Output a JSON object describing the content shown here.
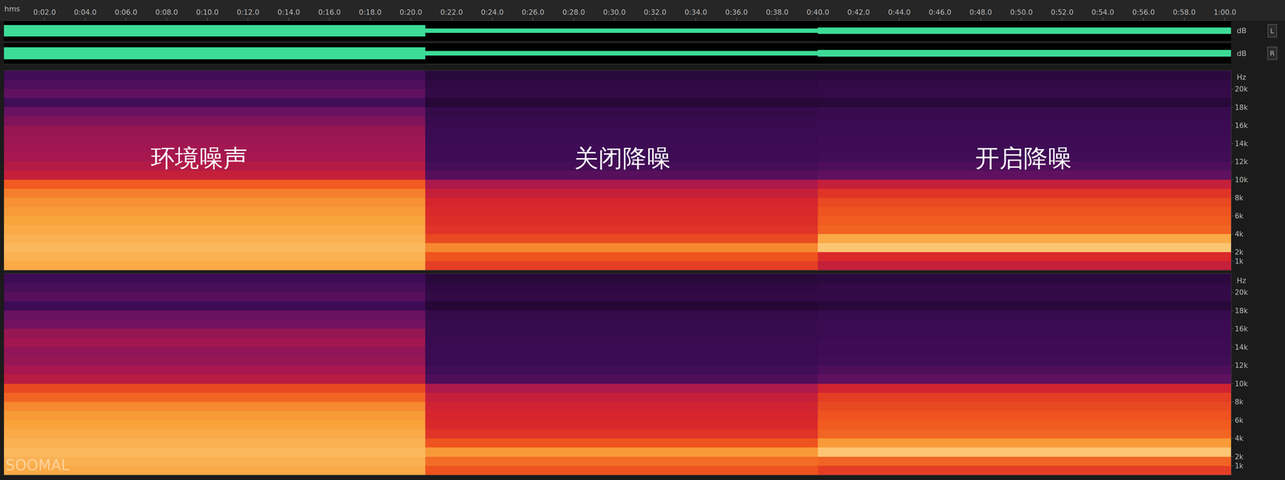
{
  "chart_data": {
    "type": "spectrogram",
    "xlabel": "hms",
    "xlim": [
      0,
      60.3
    ],
    "xticks": [
      {
        "value": 2,
        "label": "0:02.0"
      },
      {
        "value": 4,
        "label": "0:04.0"
      },
      {
        "value": 6,
        "label": "0:06.0"
      },
      {
        "value": 8,
        "label": "0:08.0"
      },
      {
        "value": 10,
        "label": "0:10.0"
      },
      {
        "value": 12,
        "label": "0:12.0"
      },
      {
        "value": 14,
        "label": "0:14.0"
      },
      {
        "value": 16,
        "label": "0:16.0"
      },
      {
        "value": 18,
        "label": "0:18.0"
      },
      {
        "value": 20,
        "label": "0:20.0"
      },
      {
        "value": 22,
        "label": "0:22.0"
      },
      {
        "value": 24,
        "label": "0:24.0"
      },
      {
        "value": 26,
        "label": "0:26.0"
      },
      {
        "value": 28,
        "label": "0:28.0"
      },
      {
        "value": 30,
        "label": "0:30.0"
      },
      {
        "value": 32,
        "label": "0:32.0"
      },
      {
        "value": 34,
        "label": "0:34.0"
      },
      {
        "value": 36,
        "label": "0:36.0"
      },
      {
        "value": 38,
        "label": "0:38.0"
      },
      {
        "value": 40,
        "label": "0:40.0"
      },
      {
        "value": 42,
        "label": "0:42.0"
      },
      {
        "value": 44,
        "label": "0:44.0"
      },
      {
        "value": 46,
        "label": "0:46.0"
      },
      {
        "value": 48,
        "label": "0:48.0"
      },
      {
        "value": 50,
        "label": "0:50.0"
      },
      {
        "value": 52,
        "label": "0:52.0"
      },
      {
        "value": 54,
        "label": "0:54.0"
      },
      {
        "value": 56,
        "label": "0:56.0"
      },
      {
        "value": 58,
        "label": "0:58.0"
      },
      {
        "value": 60,
        "label": "1:00.0"
      }
    ],
    "waveform": {
      "ylabel": "dB",
      "ylim": [
        -1,
        1
      ],
      "bins": [
        0,
        20.7,
        40.0,
        60.3
      ],
      "series": [
        {
          "name": "L",
          "color": "#3ddc97",
          "values": [
            0.55,
            0.2,
            0.3
          ]
        },
        {
          "name": "R",
          "color": "#3ddc97",
          "values": [
            0.55,
            0.2,
            0.3
          ]
        }
      ]
    },
    "spectrogram": {
      "ylabel": "Hz",
      "ylim": [
        0,
        22050
      ],
      "yticks": [
        {
          "value": 1000,
          "label": "1k"
        },
        {
          "value": 2000,
          "label": "2k"
        },
        {
          "value": 4000,
          "label": "4k"
        },
        {
          "value": 6000,
          "label": "6k"
        },
        {
          "value": 8000,
          "label": "8k"
        },
        {
          "value": 10000,
          "label": "10k"
        },
        {
          "value": 12000,
          "label": "12k"
        },
        {
          "value": 14000,
          "label": "14k"
        },
        {
          "value": 16000,
          "label": "16k"
        },
        {
          "value": 18000,
          "label": "18k"
        },
        {
          "value": 20000,
          "label": "20k"
        }
      ],
      "x_bins": [
        0,
        20.7,
        40.0,
        60.3
      ],
      "y_bins": [
        0,
        1000,
        2000,
        3000,
        4000,
        5000,
        6000,
        7000,
        8000,
        9000,
        10000,
        11000,
        12000,
        13000,
        14000,
        15000,
        16000,
        17000,
        18000,
        19000,
        20000,
        21000,
        22050
      ],
      "zlim": [
        -110,
        -40
      ],
      "channels": [
        {
          "name": "L",
          "cells": [
            [
              -48,
              -62,
              -70
            ],
            [
              -47,
              -58,
              -66
            ],
            [
              -46,
              -52,
              -44
            ],
            [
              -47,
              -60,
              -48
            ],
            [
              -48,
              -64,
              -56
            ],
            [
              -49,
              -65,
              -57
            ],
            [
              -50,
              -66,
              -58
            ],
            [
              -51,
              -67,
              -60
            ],
            [
              -53,
              -70,
              -64
            ],
            [
              -57,
              -74,
              -70
            ],
            [
              -70,
              -90,
              -88
            ],
            [
              -73,
              -94,
              -92
            ],
            [
              -75,
              -96,
              -95
            ],
            [
              -76,
              -96,
              -96
            ],
            [
              -77,
              -97,
              -96
            ],
            [
              -78,
              -97,
              -97
            ],
            [
              -82,
              -98,
              -97
            ],
            [
              -86,
              -99,
              -98
            ],
            [
              -95,
              -104,
              -103
            ],
            [
              -88,
              -100,
              -99
            ],
            [
              -92,
              -101,
              -100
            ],
            [
              -95,
              -103,
              -102
            ]
          ]
        },
        {
          "name": "R",
          "cells": [
            [
              -48,
              -58,
              -62
            ],
            [
              -47,
              -55,
              -56
            ],
            [
              -46,
              -50,
              -44
            ],
            [
              -47,
              -58,
              -50
            ],
            [
              -48,
              -64,
              -56
            ],
            [
              -49,
              -66,
              -57
            ],
            [
              -50,
              -67,
              -58
            ],
            [
              -52,
              -68,
              -60
            ],
            [
              -56,
              -70,
              -62
            ],
            [
              -60,
              -74,
              -68
            ],
            [
              -72,
              -92,
              -88
            ],
            [
              -75,
              -95,
              -92
            ],
            [
              -78,
              -97,
              -95
            ],
            [
              -79,
              -97,
              -96
            ],
            [
              -76,
              -97,
              -96
            ],
            [
              -78,
              -98,
              -97
            ],
            [
              -84,
              -98,
              -97
            ],
            [
              -86,
              -99,
              -98
            ],
            [
              -96,
              -104,
              -103
            ],
            [
              -90,
              -100,
              -99
            ],
            [
              -93,
              -101,
              -100
            ],
            [
              -96,
              -103,
              -102
            ]
          ]
        }
      ]
    },
    "annotations": [
      {
        "text": "环境噪声",
        "x": 9.6,
        "y": 12400
      },
      {
        "text": "关闭降噪",
        "x": 30.4,
        "y": 12400
      },
      {
        "text": "开启降噪",
        "x": 50.1,
        "y": 12400
      }
    ],
    "watermark": "SOOMAL"
  }
}
